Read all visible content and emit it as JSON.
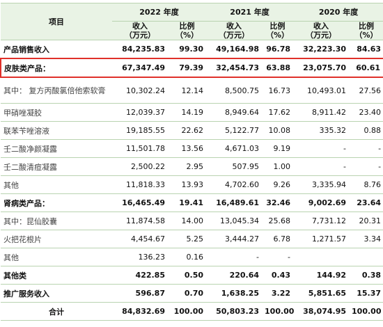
{
  "header": {
    "item": "项目",
    "years": [
      {
        "year": "2022 年度",
        "income": "收入",
        "income_unit": "（万元）",
        "ratio": "比例",
        "ratio_unit": "（%）"
      },
      {
        "year": "2021 年度",
        "income": "收入",
        "income_unit": "（万元）",
        "ratio": "比例",
        "ratio_unit": "（%）"
      },
      {
        "year": "2020 年度",
        "income": "收入",
        "income_unit": "（万元）",
        "ratio": "比例",
        "ratio_unit": "（%）"
      }
    ]
  },
  "table": {
    "rows": [
      [
        "产品销售收入",
        "84,235.83",
        "99.30",
        "49,164.98",
        "96.78",
        "32,223.30",
        "84.63"
      ],
      [
        "皮肤类产品：",
        "67,347.49",
        "79.39",
        "32,454.73",
        "63.88",
        "23,075.70",
        "60.61"
      ],
      [
        "其中： 复方丙酸氯倍他索软膏",
        "10,302.24",
        "12.14",
        "8,500.75",
        "16.73",
        "10,493.01",
        "27.56"
      ],
      [
        "甲硝唑凝胶",
        "12,039.37",
        "14.19",
        "8,949.64",
        "17.62",
        "8,911.42",
        "23.40"
      ],
      [
        "联苯苄唑溶液",
        "19,185.55",
        "22.62",
        "5,122.77",
        "10.08",
        "335.32",
        "0.88"
      ],
      [
        "壬二酸净颜凝露",
        "11,501.78",
        "13.56",
        "4,671.03",
        "9.19",
        "-",
        "-"
      ],
      [
        "壬二酸清痘凝露",
        "2,500.22",
        "2.95",
        "507.95",
        "1.00",
        "-",
        "-"
      ],
      [
        "其他",
        "11,818.33",
        "13.93",
        "4,702.60",
        "9.26",
        "3,335.94",
        "8.76"
      ],
      [
        "肾病类产品：",
        "16,465.49",
        "19.41",
        "16,489.61",
        "32.46",
        "9,002.69",
        "23.64"
      ],
      [
        "其中：昆仙胶囊",
        "11,874.58",
        "14.00",
        "13,045.34",
        "25.68",
        "7,731.12",
        "20.31"
      ],
      [
        "火把花根片",
        "4,454.67",
        "5.25",
        "3,444.27",
        "6.78",
        "1,271.57",
        "3.34"
      ],
      [
        "其他",
        "136.23",
        "0.16",
        "-",
        "-",
        null,
        null
      ],
      [
        "其他类",
        "422.85",
        "0.50",
        "220.64",
        "0.43",
        "144.92",
        "0.38"
      ],
      [
        "推广服务收入",
        "596.87",
        "0.70",
        "1,638.25",
        "3.22",
        "5,851.65",
        "15.37"
      ],
      [
        "合计",
        "84,832.69",
        "100.00",
        "50,803.23",
        "100.00",
        "38,074.95",
        "100.00"
      ]
    ]
  }
}
